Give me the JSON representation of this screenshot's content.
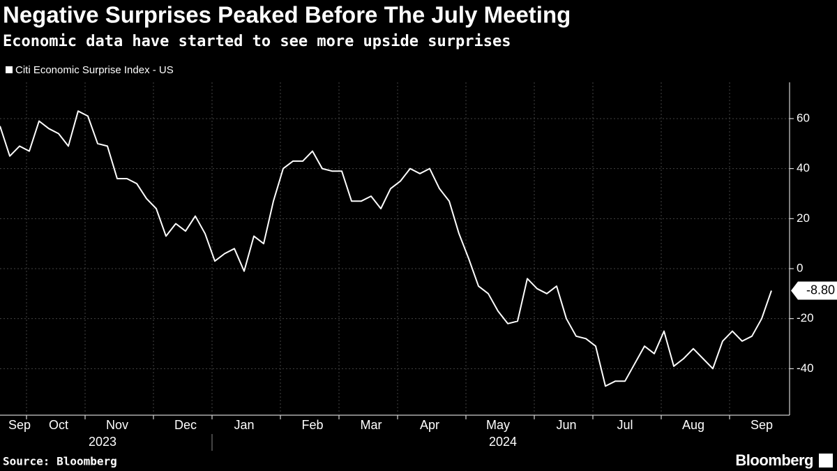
{
  "chart_data": {
    "type": "line",
    "title": "Negative Surprises Peaked Before The July Meeting",
    "subtitle": "Economic data have started to see more upside surprises",
    "source": "Source: Bloomberg",
    "brand": "Bloomberg",
    "years": [
      "2023",
      "2024"
    ],
    "categories": [
      null,
      null,
      "Sep",
      null,
      null,
      null,
      "Oct",
      null,
      null,
      null,
      null,
      null,
      "Nov",
      null,
      null,
      null,
      null,
      null,
      null,
      "Dec",
      null,
      null,
      null,
      null,
      null,
      "Jan",
      null,
      null,
      null,
      null,
      null,
      null,
      "Feb",
      null,
      null,
      null,
      null,
      null,
      "Mar",
      null,
      null,
      null,
      null,
      null,
      "Apr",
      null,
      null,
      null,
      null,
      null,
      null,
      "May",
      null,
      null,
      null,
      null,
      null,
      null,
      "Jun",
      null,
      null,
      null,
      null,
      null,
      "Jul",
      null,
      null,
      null,
      null,
      null,
      null,
      "Aug",
      null,
      null,
      null,
      null,
      null,
      null,
      "Sep",
      null
    ],
    "series": [
      {
        "name": "Citi Economic Surprise Index - US",
        "color": "#ffffff",
        "values": [
          57,
          45,
          49,
          47,
          59,
          56,
          54,
          49,
          63,
          61,
          50,
          49,
          36,
          36,
          34,
          28,
          24,
          13,
          18,
          15,
          21,
          14,
          3,
          6,
          8,
          -1,
          13,
          10,
          27,
          40,
          43,
          43,
          47,
          40,
          39,
          39,
          27,
          27,
          29,
          24,
          32,
          35,
          40,
          38,
          40,
          32,
          27,
          14,
          4,
          -7,
          -10,
          -17,
          -22,
          -21,
          -4,
          -8,
          -10,
          -7,
          -20,
          -27,
          -28,
          -31,
          -47,
          -45,
          -45,
          -38,
          -31,
          -34,
          -25,
          -39,
          -36,
          -32,
          -36,
          -40,
          -29,
          -25,
          -29,
          -27,
          -20,
          -8.8
        ],
        "value_labels": [
          null,
          null,
          null,
          null,
          null,
          null,
          null,
          null,
          null,
          null,
          null,
          null,
          null,
          null,
          null,
          null,
          null,
          null,
          null,
          null,
          null,
          null,
          null,
          null,
          null,
          null,
          null,
          null,
          null,
          null,
          null,
          null,
          null,
          null,
          null,
          null,
          null,
          null,
          null,
          null,
          null,
          null,
          null,
          null,
          null,
          null,
          null,
          null,
          null,
          null,
          null,
          null,
          null,
          null,
          null,
          null,
          null,
          null,
          null,
          null,
          null,
          null,
          null,
          null,
          null,
          null,
          null,
          null,
          null,
          null,
          null,
          null,
          null,
          null,
          null,
          null,
          null,
          null,
          null,
          "-8.80"
        ]
      }
    ],
    "ylim": [
      -58.6,
      74.5
    ],
    "yticks": [
      -40,
      -20,
      0,
      20,
      40,
      60
    ],
    "grid": true
  }
}
